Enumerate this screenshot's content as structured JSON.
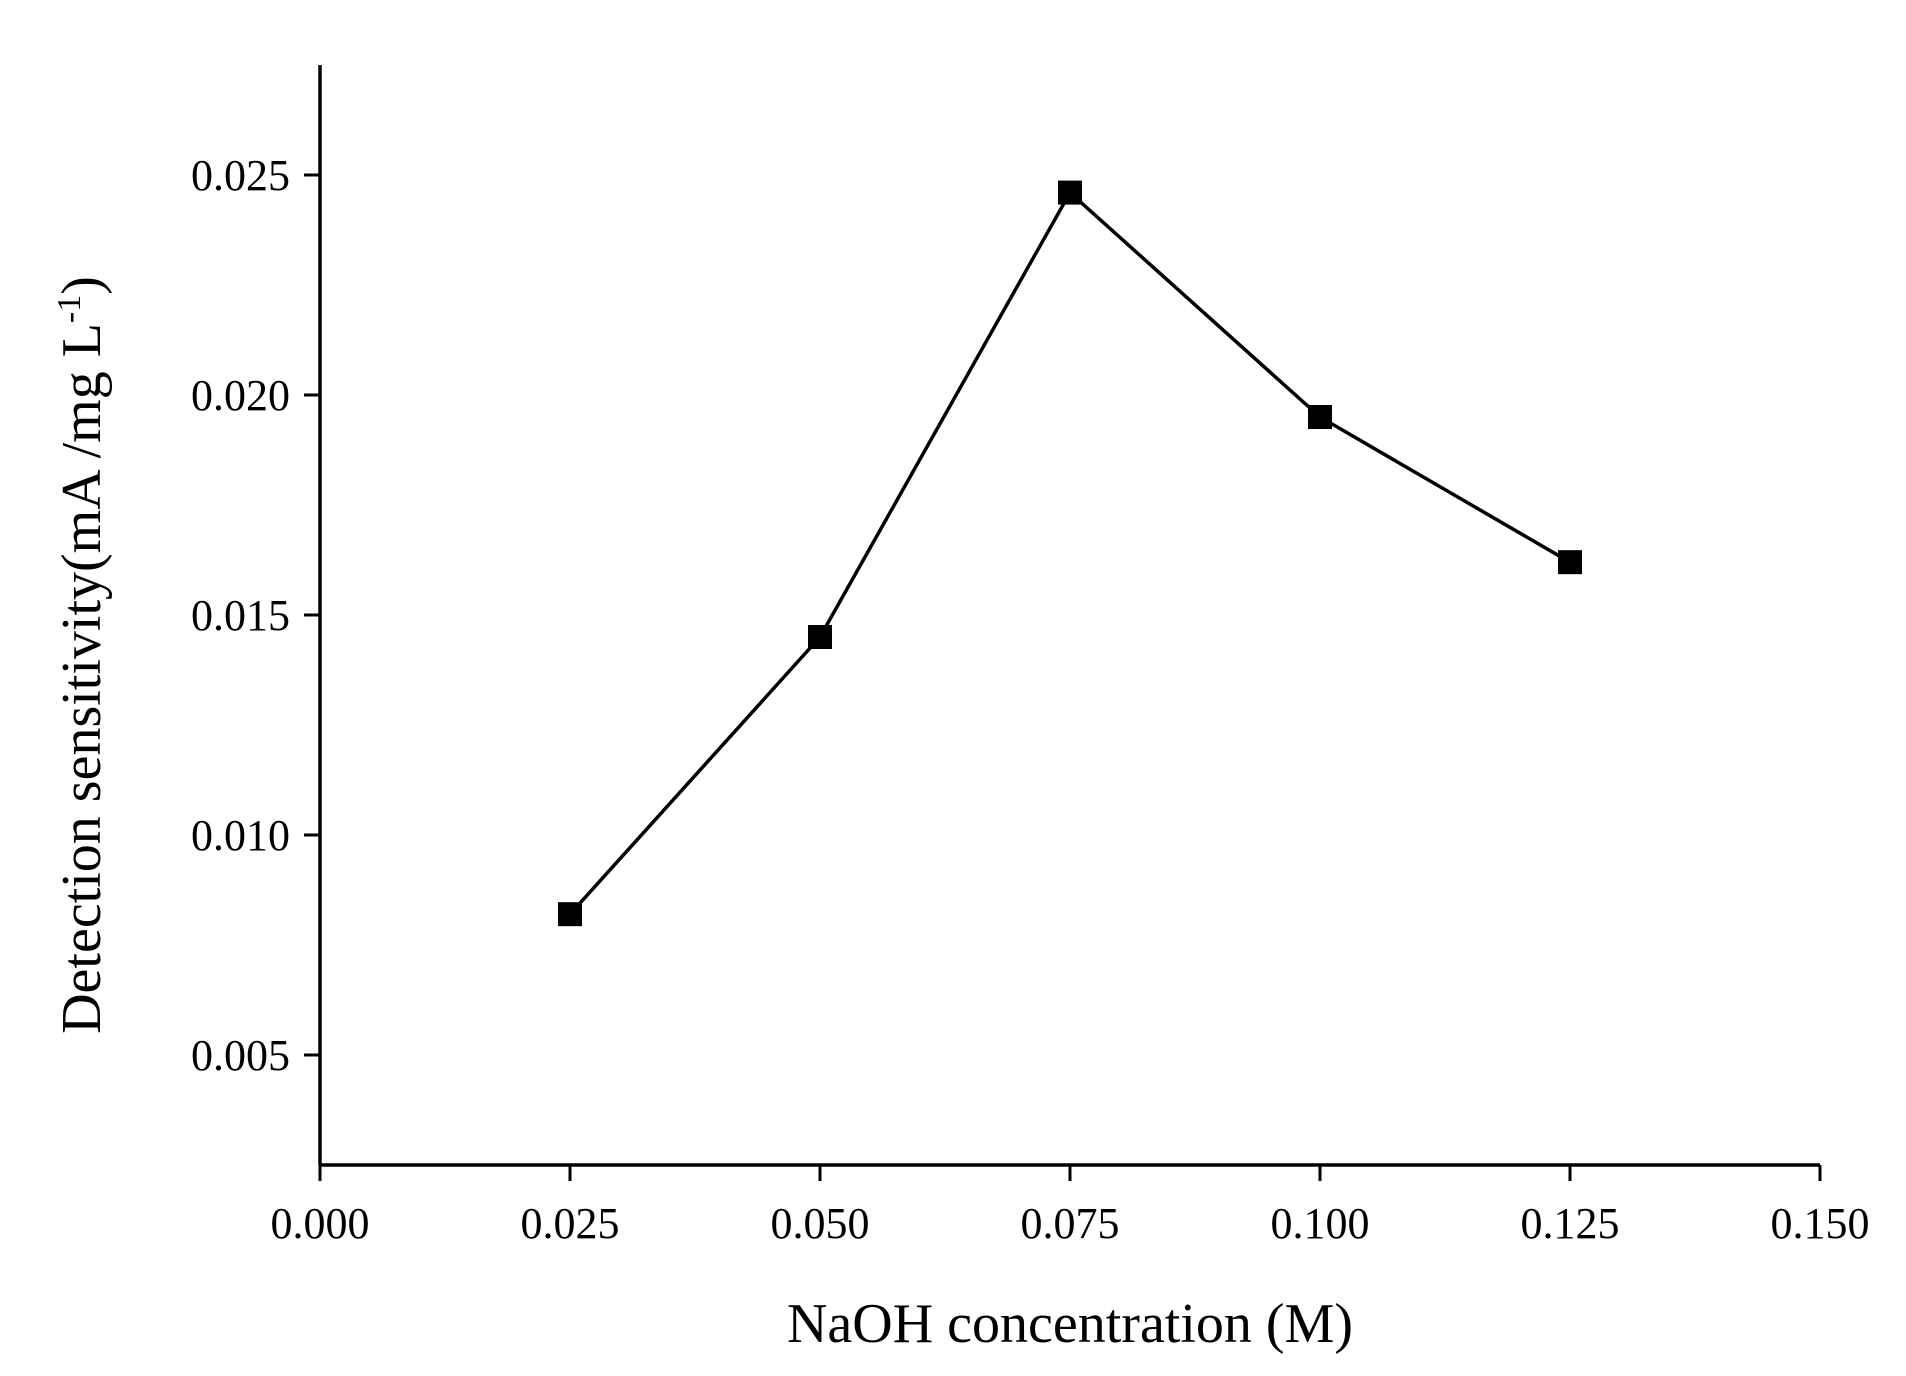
{
  "chart_data": {
    "type": "line",
    "title": "",
    "xlabel": "NaOH concentration (M)",
    "ylabel": {
      "main": "Detection sensitivity(mA /mg L",
      "superscript": "-1",
      "close": ")"
    },
    "xlim": [
      0.0,
      0.15
    ],
    "ylim": [
      0.0025,
      0.0275
    ],
    "x_ticks": [
      0.0,
      0.025,
      0.05,
      0.075,
      0.1,
      0.125,
      0.15
    ],
    "x_tick_labels": [
      "0.000",
      "0.025",
      "0.050",
      "0.075",
      "0.100",
      "0.125",
      "0.150"
    ],
    "y_ticks": [
      0.005,
      0.01,
      0.015,
      0.02,
      0.025
    ],
    "y_tick_labels": [
      "0.005",
      "0.010",
      "0.015",
      "0.020",
      "0.025"
    ],
    "grid": false,
    "series": [
      {
        "name": "Detection sensitivity",
        "marker": "square",
        "color": "#000000",
        "x": [
          0.025,
          0.05,
          0.075,
          0.1,
          0.125
        ],
        "y": [
          0.0082,
          0.0145,
          0.0246,
          0.0195,
          0.0162
        ]
      }
    ]
  }
}
